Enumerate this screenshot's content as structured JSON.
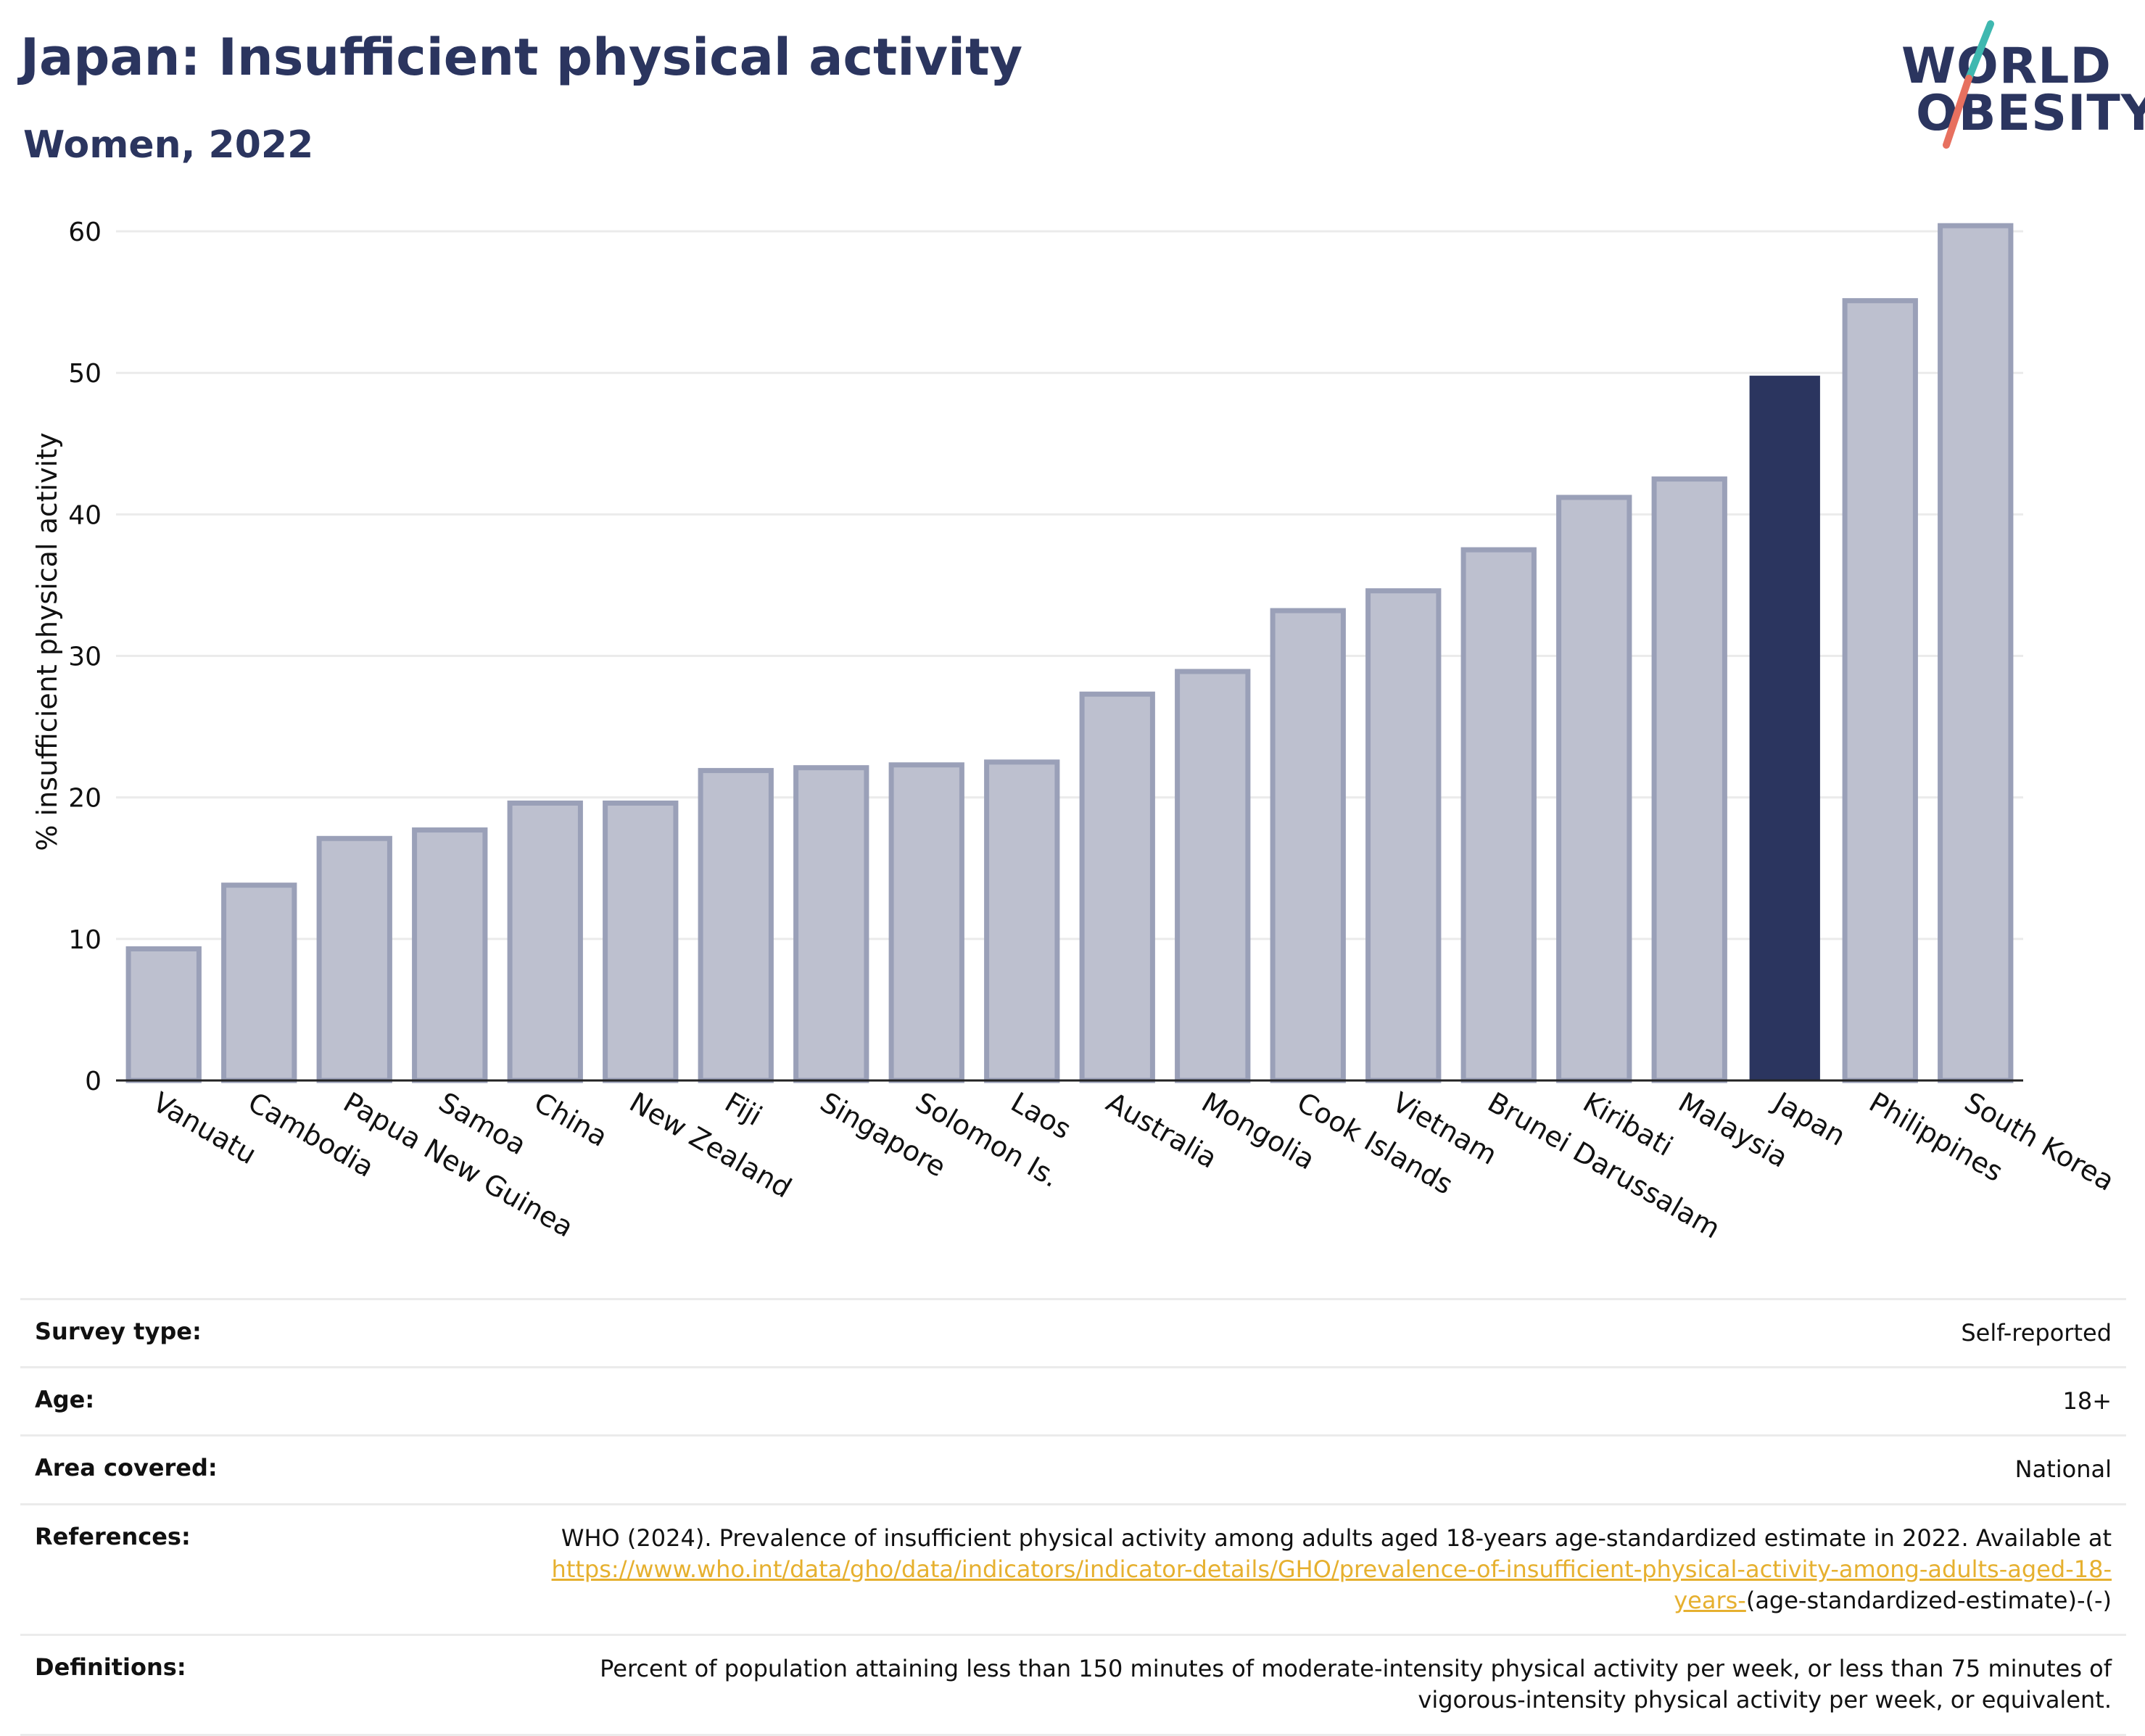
{
  "title": "Japan: Insufficient physical activity",
  "subtitle": "Women, 2022",
  "logo": {
    "line1": "WORLD",
    "line2": "OBESITY",
    "colors": [
      "#2b355f",
      "#3fb8b0",
      "#e7705f"
    ]
  },
  "colors": {
    "highlight": "#2b355f",
    "bar": "#bdc0cf",
    "bar_border": "#9aa0b8",
    "grid": "#ebebeb",
    "link": "#e6b02f"
  },
  "chart_data": {
    "type": "bar",
    "ylabel": "% insufficient physical activity",
    "ylim": [
      0,
      62
    ],
    "yticks": [
      0,
      10,
      20,
      30,
      40,
      50,
      60
    ],
    "grid": true,
    "highlight": "Japan",
    "categories": [
      "Vanuatu",
      "Cambodia",
      "Papua New Guinea",
      "Samoa",
      "China",
      "New Zealand",
      "Fiji",
      "Singapore",
      "Solomon Is.",
      "Laos",
      "Australia",
      "Mongolia",
      "Cook Islands",
      "Vietnam",
      "Brunei Darussalam",
      "Kiribati",
      "Malaysia",
      "Japan",
      "Philippines",
      "South Korea"
    ],
    "values": [
      9.3,
      13.8,
      17.1,
      17.7,
      19.6,
      19.6,
      21.9,
      22.1,
      22.3,
      22.5,
      27.3,
      28.9,
      33.2,
      34.6,
      37.5,
      41.2,
      42.5,
      49.8,
      55.1,
      60.4
    ]
  },
  "meta": [
    {
      "label": "Survey type:",
      "value": "Self-reported"
    },
    {
      "label": "Age:",
      "value": "18+"
    },
    {
      "label": "Area covered:",
      "value": "National"
    },
    {
      "label": "References:",
      "value": "WHO (2024). Prevalence of insufficient physical activity among adults aged 18-years age-standardized estimate in 2022. Available at",
      "link": "https://www.who.int/data/gho/data/indicators/indicator-details/GHO/prevalence-of-insufficient-physical-activity-among-adults-aged-18-years-",
      "suffix": "(age-standardized-estimate)-(-)"
    },
    {
      "label": "Definitions:",
      "value": "Percent of population attaining less than 150 minutes of moderate-intensity physical activity per week, or less than 75 minutes of vigorous-intensity physical activity per week, or equivalent."
    }
  ]
}
